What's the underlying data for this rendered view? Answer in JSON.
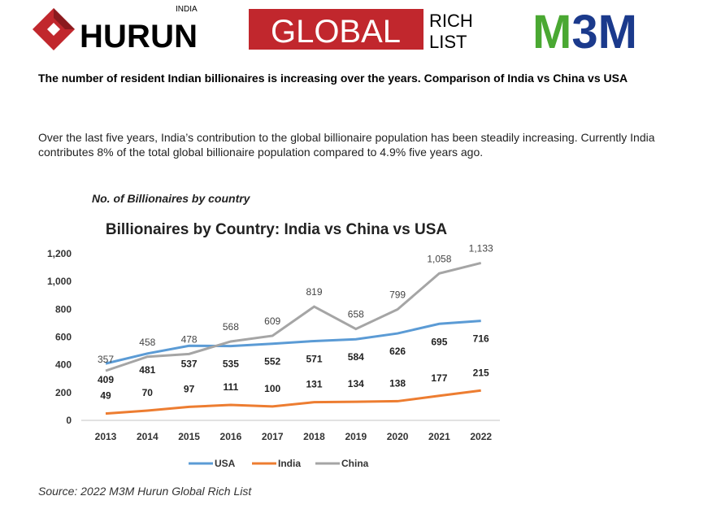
{
  "logos": {
    "hurun": "HURUN",
    "hurun_sub": "INDIA",
    "global": "GLOBAL",
    "rich": "RICH",
    "list": "LIST",
    "m3m": "M3M"
  },
  "headline": "The number of resident Indian billionaires is increasing over the years. Comparison of India vs China vs USA",
  "paragraph": "Over the last five years, India’s contribution to the global billionaire population has been steadily increasing. Currently India contributes 8% of the total global billionaire population compared to 4.9% five years ago.",
  "chart_caption": "No. of Billionaires by country",
  "source": "Source: 2022 M3M Hurun Global Rich List",
  "chart_data": {
    "type": "line",
    "title": "Billionaires by Country: India vs China vs USA",
    "categories": [
      "2013",
      "2014",
      "2015",
      "2016",
      "2017",
      "2018",
      "2019",
      "2020",
      "2021",
      "2022"
    ],
    "ylim": [
      0,
      1200
    ],
    "yticks": [
      "0",
      "200",
      "400",
      "600",
      "800",
      "1,000",
      "1,200"
    ],
    "grid": false,
    "legend": "bottom",
    "series": [
      {
        "name": "USA",
        "color": "#5b9bd5",
        "values": [
          409,
          481,
          537,
          535,
          552,
          571,
          584,
          626,
          695,
          716
        ]
      },
      {
        "name": "India",
        "color": "#ed7d31",
        "values": [
          49,
          70,
          97,
          111,
          100,
          131,
          134,
          138,
          177,
          215
        ]
      },
      {
        "name": "China",
        "color": "#a5a5a5",
        "values": [
          357,
          458,
          478,
          568,
          609,
          819,
          658,
          799,
          1058,
          1133
        ]
      }
    ]
  }
}
